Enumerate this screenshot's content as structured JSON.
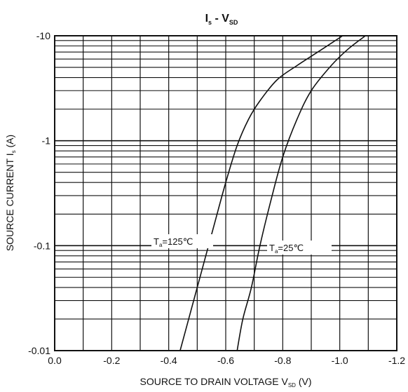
{
  "chart_data": {
    "type": "line",
    "title": {
      "main": "I",
      "sub": "s",
      "sep": " - V",
      "sub2": "SD"
    },
    "xlabel": {
      "main": "SOURCE TO DRAIN VOLTAGE V",
      "sub": "SD",
      "unit": " (V)"
    },
    "ylabel": {
      "main": "SOURCE CURRENT I",
      "sub": "s",
      "unit": " (A)"
    },
    "x_scale": "linear",
    "y_scale": "log",
    "xlim": [
      0.0,
      -1.2
    ],
    "ylim": [
      0.01,
      10
    ],
    "x_ticks": [
      0.0,
      -0.2,
      -0.4,
      -0.6,
      -0.8,
      -1.0,
      -1.2
    ],
    "x_tick_labels": [
      "0.0",
      "-0.2",
      "-0.4",
      "-0.6",
      "-0.8",
      "-1.0",
      "-1.2"
    ],
    "y_ticks": [
      10,
      1,
      0.1,
      0.01
    ],
    "y_tick_labels": [
      "-10",
      "-1",
      "-0.1",
      "-0.01"
    ],
    "grid": true,
    "series": [
      {
        "name": "Ta=125℃",
        "label_parts": {
          "main": "T",
          "sub": "a",
          "rest": "=125℃"
        },
        "points": [
          [
            -0.44,
            0.01
          ],
          [
            -0.47,
            0.02
          ],
          [
            -0.5,
            0.04
          ],
          [
            -0.53,
            0.08
          ],
          [
            -0.56,
            0.16
          ],
          [
            -0.6,
            0.4
          ],
          [
            -0.64,
            0.9
          ],
          [
            -0.68,
            1.6
          ],
          [
            -0.72,
            2.4
          ],
          [
            -0.78,
            3.8
          ],
          [
            -0.85,
            5.2
          ],
          [
            -0.93,
            7.2
          ],
          [
            -1.01,
            10
          ]
        ]
      },
      {
        "name": "Ta=25℃",
        "label_parts": {
          "main": "T",
          "sub": "a",
          "rest": "=25℃"
        },
        "points": [
          [
            -0.64,
            0.01
          ],
          [
            -0.66,
            0.02
          ],
          [
            -0.69,
            0.04
          ],
          [
            -0.72,
            0.1
          ],
          [
            -0.76,
            0.28
          ],
          [
            -0.8,
            0.7
          ],
          [
            -0.85,
            1.6
          ],
          [
            -0.9,
            3.0
          ],
          [
            -0.97,
            5.2
          ],
          [
            -1.03,
            7.5
          ],
          [
            -1.09,
            10
          ]
        ]
      }
    ]
  }
}
